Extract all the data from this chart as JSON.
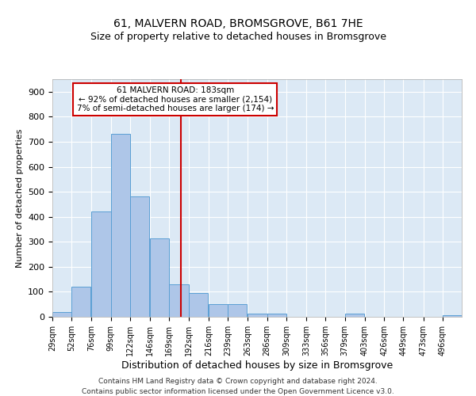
{
  "title": "61, MALVERN ROAD, BROMSGROVE, B61 7HE",
  "subtitle": "Size of property relative to detached houses in Bromsgrove",
  "xlabel": "Distribution of detached houses by size in Bromsgrove",
  "ylabel": "Number of detached properties",
  "bar_labels": [
    "29sqm",
    "52sqm",
    "76sqm",
    "99sqm",
    "122sqm",
    "146sqm",
    "169sqm",
    "192sqm",
    "216sqm",
    "239sqm",
    "263sqm",
    "286sqm",
    "309sqm",
    "333sqm",
    "356sqm",
    "379sqm",
    "403sqm",
    "426sqm",
    "449sqm",
    "473sqm",
    "496sqm"
  ],
  "bar_values": [
    20,
    120,
    420,
    730,
    480,
    315,
    130,
    95,
    50,
    50,
    12,
    12,
    0,
    0,
    0,
    12,
    0,
    0,
    0,
    0,
    5
  ],
  "bar_color": "#aec6e8",
  "bar_edge_color": "#5a9fd4",
  "property_value": 183,
  "property_label": "61 MALVERN ROAD: 183sqm",
  "annotation_line1": "← 92% of detached houses are smaller (2,154)",
  "annotation_line2": "7% of semi-detached houses are larger (174) →",
  "vline_color": "#cc0000",
  "annotation_box_edge": "#cc0000",
  "ylim": [
    0,
    950
  ],
  "yticks": [
    0,
    100,
    200,
    300,
    400,
    500,
    600,
    700,
    800,
    900
  ],
  "background_color": "#dce9f5",
  "footer_line1": "Contains HM Land Registry data © Crown copyright and database right 2024.",
  "footer_line2": "Contains public sector information licensed under the Open Government Licence v3.0.",
  "title_fontsize": 10,
  "subtitle_fontsize": 9,
  "bin_starts": [
    29,
    52,
    76,
    99,
    122,
    146,
    169,
    192,
    216,
    239,
    263,
    286,
    309,
    333,
    356,
    379,
    403,
    426,
    449,
    473,
    496
  ],
  "bin_width": 23
}
